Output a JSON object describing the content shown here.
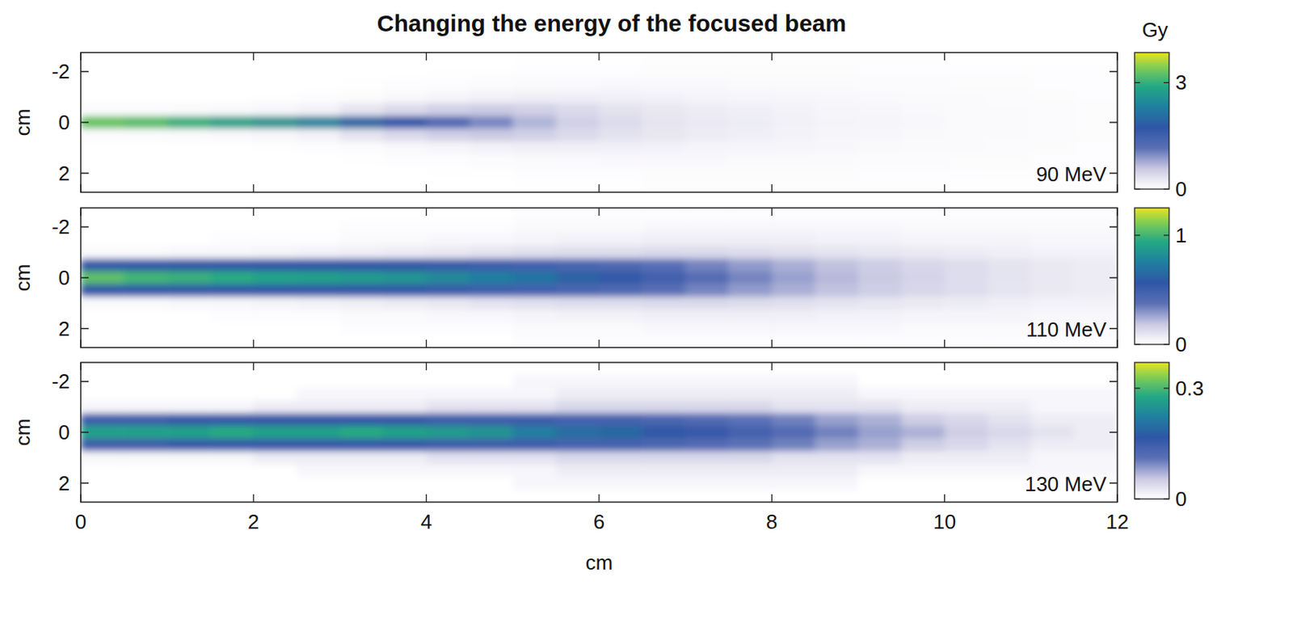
{
  "chart_data": [
    {
      "type": "heatmap",
      "title": "Changing the energy of the focused beam",
      "label": "90 MeV",
      "y_label": "cm",
      "xlim": [
        0,
        12
      ],
      "xticks": [
        0,
        2,
        4,
        6,
        8,
        10,
        12
      ],
      "ylim": [
        2.75,
        -2.75
      ],
      "yticks": [
        -2,
        0,
        2
      ],
      "tick_labels": "y",
      "x_edges": [
        0,
        0.5,
        1,
        1.5,
        2,
        2.5,
        3,
        3.5,
        4,
        4.5,
        5,
        5.5,
        6,
        6.5,
        7,
        7.5,
        8,
        8.5,
        9,
        9.5,
        10,
        10.5,
        11,
        11.5,
        12
      ],
      "y_edges": [
        -2.75,
        -2.25,
        -1.75,
        -1.25,
        -0.75,
        -0.25,
        0.25,
        0.75,
        1.25,
        1.75,
        2.25,
        2.75
      ],
      "cells": [
        [
          0,
          0,
          0,
          0,
          0,
          0,
          0,
          0,
          0,
          0,
          0.01,
          0.01,
          0.01,
          0.02,
          0.02,
          0.02,
          0.02,
          0.02,
          0.02,
          0.02,
          0.01,
          0.01,
          0.01,
          0.01
        ],
        [
          0,
          0,
          0,
          0,
          0,
          0,
          0,
          0,
          0.01,
          0.01,
          0.02,
          0.03,
          0.03,
          0.04,
          0.04,
          0.04,
          0.04,
          0.04,
          0.03,
          0.03,
          0.03,
          0.02,
          0.02,
          0.02
        ],
        [
          0,
          0,
          0,
          0,
          0,
          0,
          0.01,
          0.02,
          0.03,
          0.05,
          0.06,
          0.07,
          0.08,
          0.08,
          0.08,
          0.07,
          0.07,
          0.06,
          0.05,
          0.05,
          0.04,
          0.04,
          0.03,
          0.03
        ],
        [
          0,
          0,
          0,
          0,
          0.01,
          0.02,
          0.04,
          0.08,
          0.12,
          0.15,
          0.18,
          0.18,
          0.17,
          0.15,
          0.13,
          0.12,
          0.1,
          0.09,
          0.08,
          0.07,
          0.06,
          0.05,
          0.04,
          0.03
        ],
        [
          0.05,
          0.05,
          0.06,
          0.08,
          0.1,
          0.15,
          0.3,
          0.4,
          0.5,
          0.55,
          0.5,
          0.4,
          0.32,
          0.26,
          0.21,
          0.18,
          0.15,
          0.12,
          0.1,
          0.08,
          0.07,
          0.06,
          0.05,
          0.04
        ],
        [
          3.3,
          3.2,
          3.0,
          2.8,
          2.6,
          2.4,
          2.0,
          1.7,
          1.3,
          1.0,
          0.7,
          0.5,
          0.38,
          0.3,
          0.24,
          0.2,
          0.16,
          0.13,
          0.11,
          0.09,
          0.07,
          0.06,
          0.05,
          0.04
        ],
        [
          0.05,
          0.05,
          0.06,
          0.08,
          0.1,
          0.15,
          0.3,
          0.4,
          0.5,
          0.55,
          0.5,
          0.4,
          0.32,
          0.26,
          0.21,
          0.18,
          0.15,
          0.12,
          0.1,
          0.08,
          0.07,
          0.06,
          0.05,
          0.04
        ],
        [
          0,
          0,
          0,
          0,
          0.01,
          0.02,
          0.04,
          0.08,
          0.12,
          0.15,
          0.18,
          0.18,
          0.17,
          0.15,
          0.13,
          0.12,
          0.1,
          0.09,
          0.08,
          0.07,
          0.06,
          0.05,
          0.04,
          0.03
        ],
        [
          0,
          0,
          0,
          0,
          0,
          0,
          0.01,
          0.02,
          0.03,
          0.05,
          0.06,
          0.07,
          0.08,
          0.08,
          0.08,
          0.07,
          0.07,
          0.06,
          0.05,
          0.05,
          0.04,
          0.04,
          0.03,
          0.03
        ],
        [
          0,
          0,
          0,
          0,
          0,
          0,
          0,
          0,
          0.01,
          0.01,
          0.02,
          0.03,
          0.03,
          0.04,
          0.04,
          0.04,
          0.04,
          0.04,
          0.03,
          0.03,
          0.03,
          0.02,
          0.02,
          0.02
        ],
        [
          0,
          0,
          0,
          0,
          0,
          0,
          0,
          0,
          0,
          0,
          0.01,
          0.01,
          0.01,
          0.02,
          0.02,
          0.02,
          0.02,
          0.02,
          0.02,
          0.02,
          0.01,
          0.01,
          0.01,
          0.01
        ]
      ],
      "colorbar": {
        "range": [
          0,
          3.85
        ],
        "ticks": [
          0,
          3
        ],
        "label": "Gy"
      }
    },
    {
      "type": "heatmap",
      "label": "110 MeV",
      "y_label": "cm",
      "xlim": [
        0,
        12
      ],
      "xticks": [
        0,
        2,
        4,
        6,
        8,
        10,
        12
      ],
      "ylim": [
        2.75,
        -2.75
      ],
      "yticks": [
        -2,
        0,
        2
      ],
      "tick_labels": "y",
      "x_edges": [
        0,
        0.5,
        1,
        1.5,
        2,
        2.5,
        3,
        3.5,
        4,
        4.5,
        5,
        5.5,
        6,
        6.5,
        7,
        7.5,
        8,
        8.5,
        9,
        9.5,
        10,
        10.5,
        11,
        11.5,
        12
      ],
      "y_edges": [
        -2.75,
        -2.25,
        -1.75,
        -1.25,
        -0.75,
        -0.25,
        0.25,
        0.75,
        1.25,
        1.75,
        2.25,
        2.75
      ],
      "cells": [
        [
          0,
          0,
          0,
          0,
          0,
          0,
          0,
          0,
          0,
          0,
          0.01,
          0.01,
          0.01,
          0.01,
          0.01,
          0.01,
          0.01,
          0.01,
          0.01,
          0.01,
          0.01,
          0.01,
          0.01,
          0.01
        ],
        [
          0,
          0,
          0,
          0,
          0,
          0,
          0.01,
          0.01,
          0.01,
          0.01,
          0.02,
          0.02,
          0.02,
          0.03,
          0.03,
          0.03,
          0.03,
          0.03,
          0.03,
          0.02,
          0.02,
          0.02,
          0.02,
          0.02
        ],
        [
          0,
          0,
          0,
          0.01,
          0.01,
          0.01,
          0.02,
          0.02,
          0.03,
          0.03,
          0.04,
          0.05,
          0.05,
          0.06,
          0.06,
          0.06,
          0.06,
          0.05,
          0.05,
          0.04,
          0.04,
          0.04,
          0.03,
          0.03
        ],
        [
          0.02,
          0.02,
          0.03,
          0.03,
          0.04,
          0.05,
          0.06,
          0.07,
          0.08,
          0.1,
          0.11,
          0.12,
          0.12,
          0.13,
          0.13,
          0.12,
          0.11,
          0.1,
          0.09,
          0.08,
          0.07,
          0.06,
          0.05,
          0.05
        ],
        [
          0.55,
          0.55,
          0.55,
          0.55,
          0.55,
          0.55,
          0.55,
          0.55,
          0.52,
          0.5,
          0.48,
          0.45,
          0.42,
          0.38,
          0.33,
          0.28,
          0.24,
          0.2,
          0.17,
          0.14,
          0.12,
          0.1,
          0.08,
          0.07
        ],
        [
          1.05,
          1.0,
          0.98,
          0.95,
          0.92,
          0.9,
          0.88,
          0.85,
          0.8,
          0.75,
          0.7,
          0.62,
          0.55,
          0.48,
          0.4,
          0.33,
          0.27,
          0.22,
          0.18,
          0.15,
          0.12,
          0.1,
          0.08,
          0.07
        ],
        [
          0.55,
          0.55,
          0.55,
          0.55,
          0.55,
          0.55,
          0.55,
          0.55,
          0.52,
          0.5,
          0.48,
          0.45,
          0.42,
          0.38,
          0.33,
          0.28,
          0.24,
          0.2,
          0.17,
          0.14,
          0.12,
          0.1,
          0.08,
          0.07
        ],
        [
          0.02,
          0.02,
          0.03,
          0.03,
          0.04,
          0.05,
          0.06,
          0.07,
          0.08,
          0.1,
          0.11,
          0.12,
          0.12,
          0.13,
          0.13,
          0.12,
          0.11,
          0.1,
          0.09,
          0.08,
          0.07,
          0.06,
          0.05,
          0.05
        ],
        [
          0,
          0,
          0,
          0.01,
          0.01,
          0.01,
          0.02,
          0.02,
          0.03,
          0.03,
          0.04,
          0.05,
          0.05,
          0.06,
          0.06,
          0.06,
          0.06,
          0.05,
          0.05,
          0.04,
          0.04,
          0.04,
          0.03,
          0.03
        ],
        [
          0,
          0,
          0,
          0,
          0,
          0,
          0.01,
          0.01,
          0.01,
          0.01,
          0.02,
          0.02,
          0.02,
          0.03,
          0.03,
          0.03,
          0.03,
          0.03,
          0.03,
          0.02,
          0.02,
          0.02,
          0.02,
          0.02
        ],
        [
          0,
          0,
          0,
          0,
          0,
          0,
          0,
          0,
          0,
          0,
          0.01,
          0.01,
          0.01,
          0.01,
          0.01,
          0.01,
          0.01,
          0.01,
          0.01,
          0.01,
          0.01,
          0.01,
          0.01,
          0.01
        ]
      ],
      "colorbar": {
        "range": [
          0,
          1.25
        ],
        "ticks": [
          0,
          1
        ]
      }
    },
    {
      "type": "heatmap",
      "label": "130 MeV",
      "y_label": "cm",
      "x_label": "cm",
      "xlim": [
        0,
        12
      ],
      "xticks": [
        0,
        2,
        4,
        6,
        8,
        10,
        12
      ],
      "ylim": [
        2.75,
        -2.75
      ],
      "yticks": [
        -2,
        0,
        2
      ],
      "x_edges": [
        0,
        0.5,
        1,
        1.5,
        2,
        2.5,
        3,
        3.5,
        4,
        4.5,
        5,
        5.5,
        6,
        6.5,
        7,
        7.5,
        8,
        8.5,
        9,
        9.5,
        10,
        10.5,
        11,
        11.5,
        12
      ],
      "y_edges": [
        -2.75,
        -2.25,
        -1.75,
        -1.25,
        -0.75,
        -0.25,
        0.25,
        0.75,
        1.25,
        1.75,
        2.25,
        2.75
      ],
      "cells": [
        [
          0,
          0,
          0,
          0,
          0,
          0,
          0,
          0,
          0,
          0,
          0,
          0,
          0,
          0,
          0,
          0,
          0,
          0,
          0,
          0,
          0,
          0,
          0,
          0
        ],
        [
          0,
          0,
          0,
          0,
          0,
          0,
          0,
          0,
          0,
          0,
          0.01,
          0.01,
          0.01,
          0.01,
          0.01,
          0.01,
          0.01,
          0.01,
          0,
          0,
          0,
          0,
          0,
          0
        ],
        [
          0,
          0,
          0,
          0,
          0,
          0.01,
          0.01,
          0.01,
          0.01,
          0.01,
          0.01,
          0.02,
          0.02,
          0.02,
          0.02,
          0.02,
          0.02,
          0.02,
          0.01,
          0.01,
          0.01,
          0.01,
          0.01,
          0.01
        ],
        [
          0.01,
          0.01,
          0.01,
          0.01,
          0.02,
          0.02,
          0.02,
          0.02,
          0.03,
          0.03,
          0.03,
          0.04,
          0.04,
          0.04,
          0.04,
          0.04,
          0.03,
          0.03,
          0.03,
          0.02,
          0.02,
          0.02,
          0.01,
          0.01
        ],
        [
          0.15,
          0.15,
          0.16,
          0.16,
          0.16,
          0.16,
          0.16,
          0.16,
          0.15,
          0.15,
          0.15,
          0.14,
          0.14,
          0.13,
          0.12,
          0.11,
          0.1,
          0.08,
          0.07,
          0.05,
          0.04,
          0.03,
          0.02,
          0.02
        ],
        [
          0.27,
          0.27,
          0.27,
          0.28,
          0.27,
          0.27,
          0.28,
          0.27,
          0.26,
          0.25,
          0.22,
          0.2,
          0.19,
          0.17,
          0.16,
          0.14,
          0.12,
          0.1,
          0.08,
          0.07,
          0.05,
          0.04,
          0.03,
          0.02
        ],
        [
          0.15,
          0.15,
          0.16,
          0.16,
          0.16,
          0.16,
          0.16,
          0.16,
          0.15,
          0.15,
          0.15,
          0.14,
          0.14,
          0.13,
          0.12,
          0.11,
          0.1,
          0.08,
          0.07,
          0.05,
          0.04,
          0.03,
          0.02,
          0.02
        ],
        [
          0.01,
          0.01,
          0.01,
          0.01,
          0.02,
          0.02,
          0.02,
          0.02,
          0.03,
          0.03,
          0.03,
          0.04,
          0.04,
          0.04,
          0.04,
          0.04,
          0.03,
          0.03,
          0.03,
          0.02,
          0.02,
          0.02,
          0.01,
          0.01
        ],
        [
          0,
          0,
          0,
          0,
          0,
          0.01,
          0.01,
          0.01,
          0.01,
          0.01,
          0.01,
          0.02,
          0.02,
          0.02,
          0.02,
          0.02,
          0.02,
          0.02,
          0.01,
          0.01,
          0.01,
          0.01,
          0.01,
          0.01
        ],
        [
          0,
          0,
          0,
          0,
          0,
          0,
          0,
          0,
          0,
          0,
          0.01,
          0.01,
          0.01,
          0.01,
          0.01,
          0.01,
          0.01,
          0.01,
          0,
          0,
          0,
          0,
          0,
          0
        ],
        [
          0,
          0,
          0,
          0,
          0,
          0,
          0,
          0,
          0,
          0,
          0,
          0,
          0,
          0,
          0,
          0,
          0,
          0,
          0,
          0,
          0,
          0,
          0,
          0
        ]
      ],
      "colorbar": {
        "range": [
          0,
          0.37
        ],
        "ticks": [
          0,
          0.3
        ]
      }
    }
  ]
}
